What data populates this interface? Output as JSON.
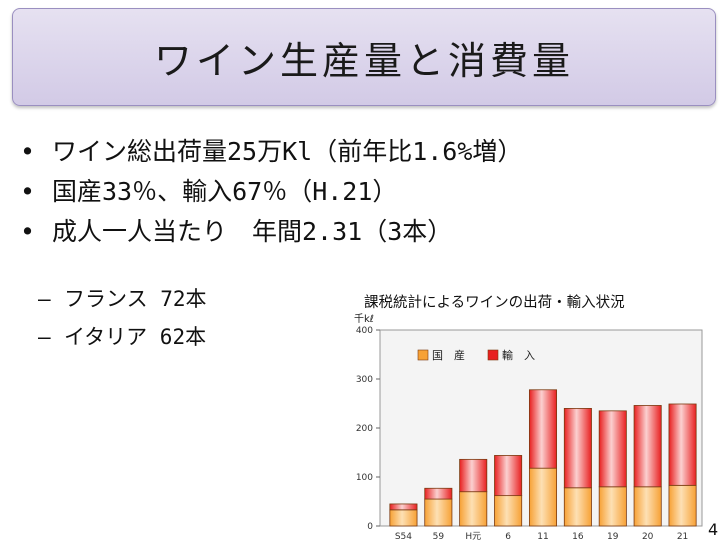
{
  "slide": {
    "title": "ワイン生産量と消費量",
    "bullets": [
      "ワイン総出荷量25万Kl（前年比1.6%増）",
      "国産33％、輸入67％（H.21）",
      "成人一人当たり　年間2.31（3本）"
    ],
    "bullet_glyph": "•",
    "sub_bullets": [
      "フランス 72本",
      "イタリア 62本"
    ],
    "sub_bullet_glyph": "–",
    "page_number": "4"
  },
  "chart_caption": "課税統計によるワインの出荷・輸入状況",
  "chart_data": {
    "type": "bar",
    "stacked": true,
    "unit_label": "千kℓ",
    "categories": [
      "S54",
      "59",
      "H元",
      "6",
      "11",
      "16",
      "19",
      "20",
      "21"
    ],
    "series": [
      {
        "name": "国　産",
        "color": "#f7a135",
        "values": [
          33,
          55,
          70,
          62,
          118,
          78,
          80,
          80,
          83
        ]
      },
      {
        "name": "輸　入",
        "color": "#e82020",
        "values": [
          12,
          22,
          66,
          82,
          160,
          162,
          155,
          166,
          166
        ]
      }
    ],
    "ylim": [
      0,
      400
    ],
    "yticks": [
      0,
      100,
      200,
      300,
      400
    ],
    "grid": false,
    "legend_position": "top-center"
  }
}
